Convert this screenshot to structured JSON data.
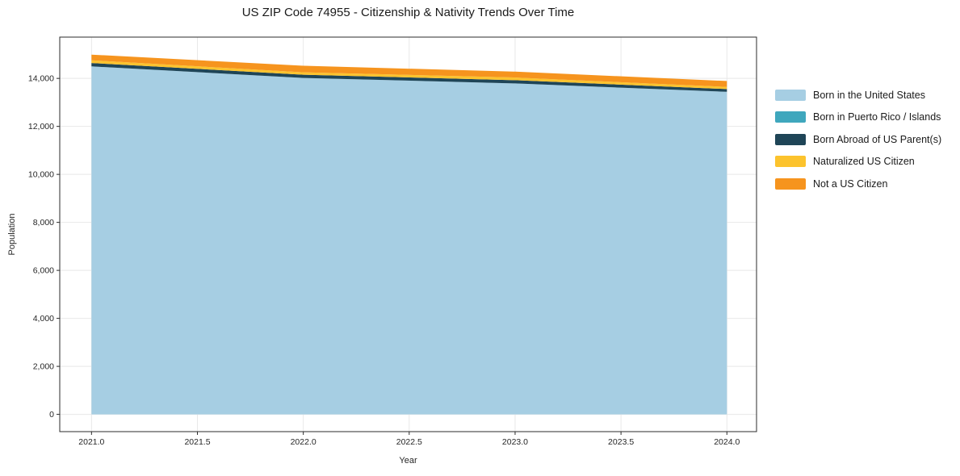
{
  "title": "US ZIP Code 74955 - Citizenship & Nativity Trends Over Time",
  "chart_data": {
    "type": "area",
    "stacked": true,
    "title": "US ZIP Code 74955 - Citizenship & Nativity Trends Over Time",
    "xlabel": "Year",
    "ylabel": "Population",
    "x": [
      2021,
      2022,
      2023,
      2024
    ],
    "series": [
      {
        "name": "Born in the United States",
        "color": "#a6cee3",
        "values": [
          14500,
          14020,
          13790,
          13440
        ]
      },
      {
        "name": "Born in Puerto Rico / Islands",
        "color": "#3fa7bd",
        "values": [
          0,
          0,
          0,
          0
        ]
      },
      {
        "name": "Born Abroad of US Parent(s)",
        "color": "#1f4557",
        "values": [
          140,
          135,
          135,
          115
        ]
      },
      {
        "name": "Naturalized US Citizen",
        "color": "#fcc32d",
        "values": [
          115,
          100,
          110,
          90
        ]
      },
      {
        "name": "Not a US Citizen",
        "color": "#f6941e",
        "values": [
          235,
          270,
          245,
          245
        ]
      }
    ],
    "xlim": [
      2020.85,
      2024.14
    ],
    "ylim": [
      -720,
      15720
    ],
    "xticks": [
      2021.0,
      2021.5,
      2022.0,
      2022.5,
      2023.0,
      2023.5,
      2024.0
    ],
    "xtick_labels": [
      "2021.0",
      "2021.5",
      "2022.0",
      "2022.5",
      "2023.0",
      "2023.5",
      "2024.0"
    ],
    "yticks": [
      0,
      2000,
      4000,
      6000,
      8000,
      10000,
      12000,
      14000
    ],
    "ytick_labels": [
      "0",
      "2,000",
      "4,000",
      "6,000",
      "8,000",
      "10,000",
      "12,000",
      "14,000"
    ],
    "grid": true,
    "grid_color": "#e8e8e8",
    "spine_color": "#2b2b2b",
    "legend_position": "right"
  }
}
